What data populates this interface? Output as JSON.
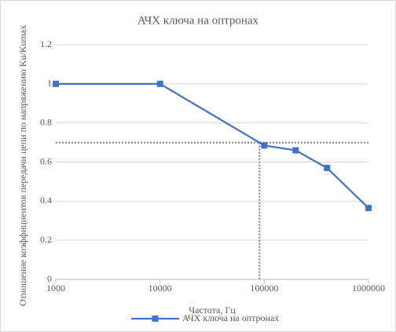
{
  "chart_data": {
    "type": "line",
    "title": "АЧХ ключа на оптронах",
    "x_label": "Частота, Гц",
    "y_label": "Отношение коэффициентов передачи цепи по напряжению Ku/Kumax",
    "x": [
      1000,
      10000,
      100000,
      200000,
      400000,
      1000000
    ],
    "series": [
      {
        "name": "АЧХ ключа на оптронах",
        "color": "#4472c4",
        "values": [
          1,
          1,
          0.685,
          0.66,
          0.57,
          0.365
        ]
      }
    ],
    "xlim": [
      1000,
      1000000
    ],
    "xticks": [
      1000,
      10000,
      100000,
      1000000
    ],
    "x_log": true,
    "ylim": [
      0,
      1.2
    ],
    "yticks": [
      0,
      0.2,
      0.4,
      0.6,
      0.8,
      1,
      1.2
    ],
    "grid": true,
    "reference_lines": {
      "y": 0.7,
      "x": 90000
    },
    "legend": "bottom"
  }
}
